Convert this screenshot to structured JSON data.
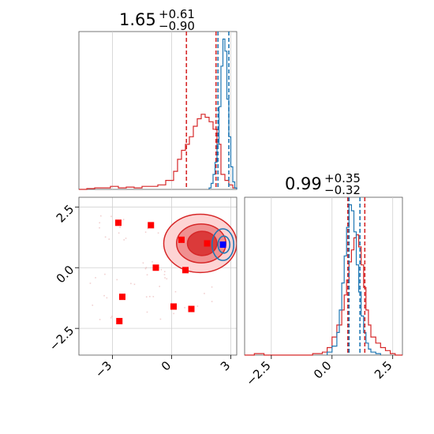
{
  "chart_data": [
    {
      "panel": "top-left",
      "type": "histogram",
      "title": {
        "value": "1.65",
        "plus": "+0.61",
        "minus": "−0.90"
      },
      "xlim": [
        -4.7,
        3.3
      ],
      "series": [
        {
          "name": "",
          "color": "#d62728",
          "bins": [
            -4.7,
            -4.3,
            -3.9,
            -3.5,
            -3.1,
            -2.7,
            -2.3,
            -1.9,
            -1.5,
            -1.1,
            -0.7,
            -0.3,
            0.1,
            0.3,
            0.5,
            0.7,
            0.9,
            1.1,
            1.3,
            1.5,
            1.7,
            1.9,
            2.1,
            2.3,
            2.5,
            2.7,
            2.9,
            3.1,
            3.3
          ],
          "density": [
            0.0,
            0.005,
            0.01,
            0.01,
            0.02,
            0.01,
            0.015,
            0.01,
            0.02,
            0.02,
            0.03,
            0.06,
            0.12,
            0.2,
            0.26,
            0.3,
            0.35,
            0.42,
            0.47,
            0.5,
            0.48,
            0.45,
            0.4,
            0.3,
            0.1,
            0.06,
            0.03,
            0.01
          ]
        },
        {
          "name": "",
          "color": "#1f77b4",
          "bins": [
            1.9,
            2.0,
            2.1,
            2.2,
            2.3,
            2.4,
            2.5,
            2.6,
            2.7,
            2.8,
            2.9,
            3.0,
            3.1,
            3.2,
            3.3
          ],
          "density": [
            0.01,
            0.04,
            0.1,
            0.18,
            0.3,
            0.55,
            0.82,
            1.0,
            0.92,
            0.6,
            0.35,
            0.15,
            0.05,
            0.01
          ]
        }
      ],
      "ymax": 1.05,
      "vlines": [
        {
          "x": 0.75,
          "color": "#d62728"
        },
        {
          "x": 2.25,
          "color": "#d62728"
        },
        {
          "x": 2.35,
          "color": "#1f77b4"
        },
        {
          "x": 2.9,
          "color": "#1f77b4"
        }
      ]
    },
    {
      "panel": "bottom-left",
      "type": "contour-scatter",
      "xlim": [
        -4.7,
        3.3
      ],
      "ylim": [
        -3.6,
        2.9
      ],
      "xticks": [
        {
          "value": -3,
          "label": "−3"
        },
        {
          "value": 0,
          "label": "0"
        },
        {
          "value": 3,
          "label": "3"
        }
      ],
      "yticks": [
        {
          "value": 2.5,
          "label": "2.5"
        },
        {
          "value": 0.0,
          "label": "0.0"
        },
        {
          "value": -2.5,
          "label": "−2.5"
        }
      ],
      "red_contours": [
        {
          "cx": 1.45,
          "cy": 1.0,
          "rx": 1.85,
          "ry": 1.2,
          "fill": "#fdd4d4"
        },
        {
          "cx": 1.5,
          "cy": 1.0,
          "rx": 1.25,
          "ry": 0.8,
          "fill": "#f09090"
        },
        {
          "cx": 1.55,
          "cy": 1.0,
          "rx": 0.75,
          "ry": 0.5,
          "fill": "#db3a3a"
        }
      ],
      "blue_contours": [
        {
          "cx": 2.6,
          "cy": 0.95,
          "rx": 0.55,
          "ry": 0.65
        },
        {
          "cx": 2.65,
          "cy": 0.95,
          "rx": 0.3,
          "ry": 0.35
        }
      ],
      "red_markers": [
        {
          "x": -2.7,
          "y": 1.85
        },
        {
          "x": -1.05,
          "y": 1.75
        },
        {
          "x": 0.5,
          "y": 1.15
        },
        {
          "x": 1.8,
          "y": 1.0
        },
        {
          "x": -0.8,
          "y": 0.0
        },
        {
          "x": 0.7,
          "y": -0.1
        },
        {
          "x": -2.5,
          "y": -1.2
        },
        {
          "x": 0.1,
          "y": -1.6
        },
        {
          "x": 1.0,
          "y": -1.7
        },
        {
          "x": -2.65,
          "y": -2.2
        }
      ],
      "blue_marker": {
        "x": 2.6,
        "y": 0.95
      }
    },
    {
      "panel": "bottom-right",
      "type": "histogram",
      "title": {
        "value": "0.99",
        "plus": "+0.35",
        "minus": "−0.32"
      },
      "xlim": [
        -3.6,
        2.9
      ],
      "xticks": [
        {
          "value": -2.5,
          "label": "−2.5"
        },
        {
          "value": 0.0,
          "label": "0.0"
        },
        {
          "value": 2.5,
          "label": "2.5"
        }
      ],
      "series": [
        {
          "name": "",
          "color": "#d62728",
          "bins": [
            -3.6,
            -3.2,
            -2.8,
            -2.4,
            -2.0,
            -1.6,
            -1.2,
            -0.8,
            -0.4,
            -0.2,
            0.0,
            0.2,
            0.4,
            0.5,
            0.6,
            0.7,
            0.8,
            0.9,
            1.0,
            1.1,
            1.2,
            1.3,
            1.4,
            1.5,
            1.6,
            1.8,
            2.0,
            2.2,
            2.4,
            2.6,
            2.9
          ],
          "density": [
            0.0,
            0.01,
            0.0,
            0.0,
            0.0,
            0.0,
            0.0,
            0.01,
            0.02,
            0.05,
            0.12,
            0.2,
            0.3,
            0.4,
            0.5,
            0.62,
            0.7,
            0.78,
            0.8,
            0.72,
            0.6,
            0.45,
            0.3,
            0.2,
            0.12,
            0.08,
            0.05,
            0.03,
            0.01,
            0.0
          ]
        },
        {
          "name": "",
          "color": "#1f77b4",
          "bins": [
            -0.2,
            0.0,
            0.2,
            0.3,
            0.4,
            0.5,
            0.6,
            0.7,
            0.8,
            0.9,
            1.0,
            1.1,
            1.2,
            1.3,
            1.4,
            1.5,
            1.6,
            1.8,
            2.0
          ],
          "density": [
            0.02,
            0.06,
            0.15,
            0.3,
            0.48,
            0.66,
            0.85,
            1.0,
            0.96,
            0.82,
            0.6,
            0.42,
            0.26,
            0.15,
            0.08,
            0.04,
            0.02,
            0.01
          ]
        }
      ],
      "ymax": 1.05,
      "vlines": [
        {
          "x": 0.65,
          "color": "#d62728"
        },
        {
          "x": 0.7,
          "color": "#1f77b4"
        },
        {
          "x": 1.15,
          "color": "#1f77b4"
        },
        {
          "x": 1.35,
          "color": "#d62728"
        }
      ]
    }
  ]
}
